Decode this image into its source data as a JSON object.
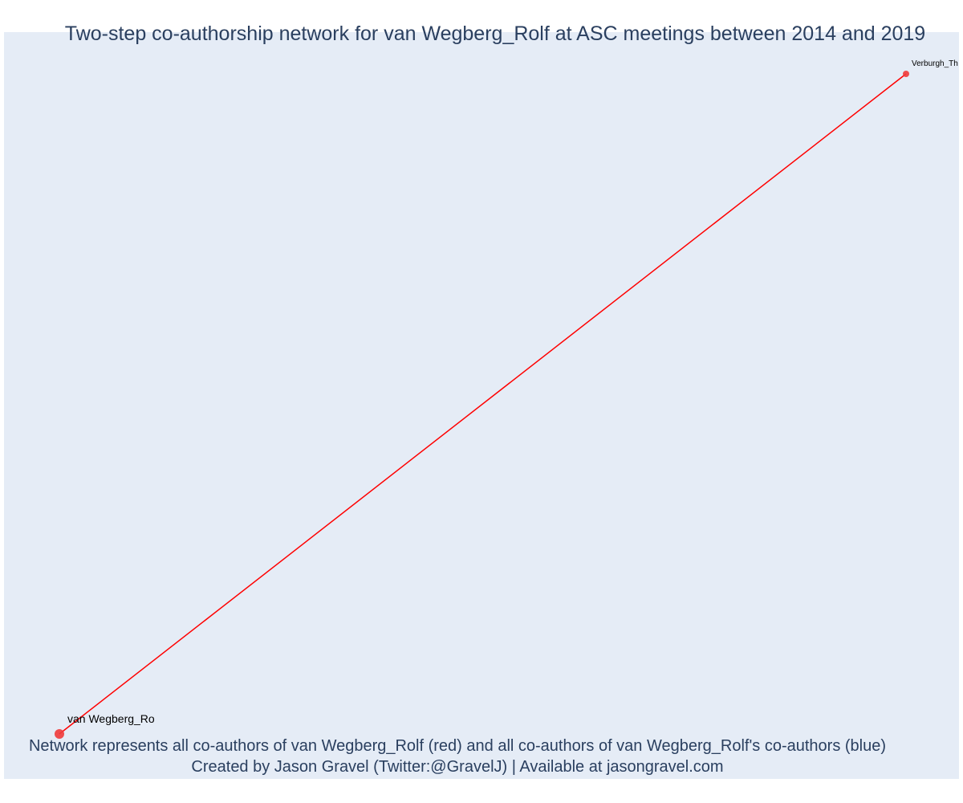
{
  "figure": {
    "title": "Two-step co-authorship network for van Wegberg_Rolf at ASC meetings between 2014 and 2019",
    "footer_line_1": "Network represents all co-authors of van Wegberg_Rolf (red) and all co-authors of van Wegberg_Rolf's co-authors (blue)",
    "footer_line_2": "Created by Jason Gravel (Twitter:@GravelJ) | Available at jasongravel.com"
  },
  "chart_data": {
    "type": "network",
    "xlim": [
      0,
      1
    ],
    "ylim": [
      0,
      1
    ],
    "grid": false,
    "nodes": [
      {
        "id": "van Wegberg_Rolf",
        "label": "van Wegberg_Ro",
        "x": 0,
        "y": 0,
        "color": "#ef3b3b",
        "role": "focal"
      },
      {
        "id": "Verburgh_Thijmen",
        "label": "Verburgh_Th",
        "x": 1,
        "y": 1,
        "color": "#ef3b3b",
        "role": "co-author"
      }
    ],
    "edges": [
      {
        "source": "van Wegberg_Rolf",
        "target": "Verburgh_Thijmen",
        "color": "#ff0000"
      }
    ]
  },
  "colors": {
    "plot_background": "#e5ecf6",
    "text": "#2a3f5f",
    "node_red": "#ef3b3b",
    "edge_red": "#ff0000"
  }
}
